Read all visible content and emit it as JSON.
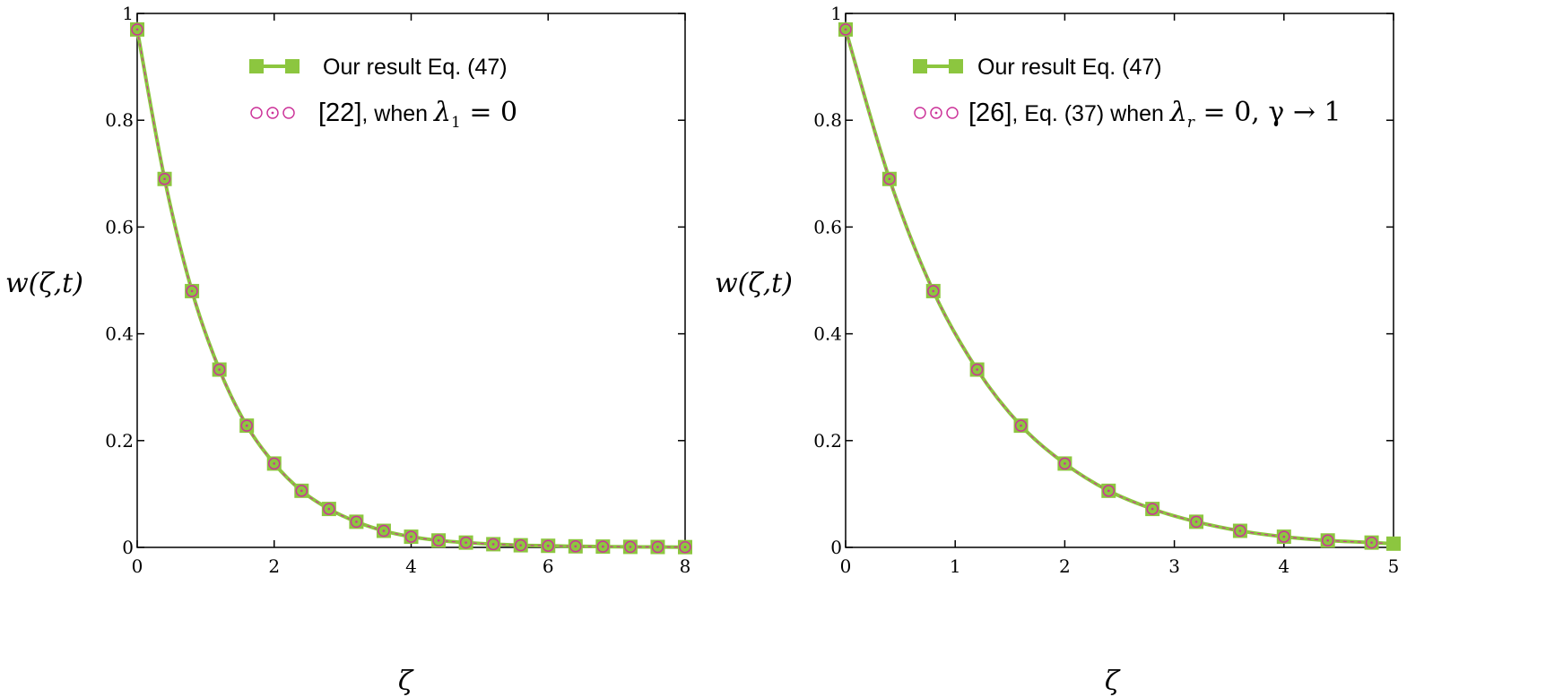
{
  "colors": {
    "series1": "#8cc63f",
    "series2": "#cc3399",
    "axis": "#000000"
  },
  "chart_data": [
    {
      "type": "line",
      "xlabel": "ζ",
      "ylabel": "w(ζ,t)",
      "xlim": [
        0,
        8
      ],
      "ylim": [
        0,
        1
      ],
      "xticks": [
        "0",
        "2",
        "4",
        "6",
        "8"
      ],
      "yticks": [
        "0",
        "0.2",
        "0.4",
        "0.6",
        "0.8",
        "1"
      ],
      "legend": {
        "series1": "Our result Eq. (47)",
        "series2_ref": "[22]",
        "series2_text": ", when ",
        "series2_math": "λ",
        "series2_sub": "1",
        "series2_tail": " = 0"
      },
      "series": [
        {
          "name": "Our result Eq. (47)",
          "marker": "square",
          "x": [
            0,
            0.4,
            0.8,
            1.2,
            1.6,
            2.0,
            2.4,
            2.8,
            3.2,
            3.6,
            4.0,
            4.4,
            4.8,
            5.2,
            5.6,
            6.0,
            6.4,
            6.8,
            7.2,
            7.6,
            8.0
          ],
          "y": [
            0.97,
            0.69,
            0.48,
            0.333,
            0.228,
            0.157,
            0.106,
            0.072,
            0.048,
            0.031,
            0.02,
            0.013,
            0.009,
            0.006,
            0.004,
            0.003,
            0.002,
            0.0015,
            0.001,
            0.0008,
            0.0005
          ]
        },
        {
          "name": "[22], when λ1 = 0",
          "marker": "circle",
          "x": [
            0,
            0.4,
            0.8,
            1.2,
            1.6,
            2.0,
            2.4,
            2.8,
            3.2,
            3.6,
            4.0,
            4.4,
            4.8,
            5.2,
            5.6,
            6.0,
            6.4,
            6.8,
            7.2,
            7.6,
            8.0
          ],
          "y": [
            0.97,
            0.69,
            0.48,
            0.333,
            0.228,
            0.157,
            0.106,
            0.072,
            0.048,
            0.031,
            0.02,
            0.013,
            0.009,
            0.006,
            0.004,
            0.003,
            0.002,
            0.0015,
            0.001,
            0.0008,
            0.0005
          ]
        }
      ]
    },
    {
      "type": "line",
      "xlabel": "ζ",
      "ylabel": "w(ζ,t)",
      "xlim": [
        0,
        5
      ],
      "ylim": [
        0,
        1
      ],
      "xticks": [
        "0",
        "1",
        "2",
        "3",
        "4",
        "5"
      ],
      "yticks": [
        "0",
        "0.2",
        "0.4",
        "0.6",
        "0.8",
        "1"
      ],
      "legend": {
        "series1": "Our result Eq. (47)",
        "series2_ref": "[26]",
        "series2_text": ", Eq. (37) when ",
        "series2_math": "λ",
        "series2_sub": "r",
        "series2_tail": " = 0, γ → 1"
      },
      "series": [
        {
          "name": "Our result Eq. (47)",
          "marker": "square",
          "x": [
            0,
            0.4,
            0.8,
            1.2,
            1.6,
            2.0,
            2.4,
            2.8,
            3.2,
            3.6,
            4.0,
            4.4,
            4.8,
            5.0
          ],
          "y": [
            0.97,
            0.69,
            0.48,
            0.333,
            0.228,
            0.157,
            0.106,
            0.072,
            0.048,
            0.031,
            0.02,
            0.013,
            0.009,
            0.007
          ]
        },
        {
          "name": "[26], Eq. (37) when λr = 0, γ → 1",
          "marker": "circle",
          "x": [
            0,
            0.4,
            0.8,
            1.2,
            1.6,
            2.0,
            2.4,
            2.8,
            3.2,
            3.6,
            4.0,
            4.4,
            4.8
          ],
          "y": [
            0.97,
            0.69,
            0.48,
            0.333,
            0.228,
            0.157,
            0.106,
            0.072,
            0.048,
            0.031,
            0.02,
            0.013,
            0.009
          ]
        }
      ]
    }
  ]
}
